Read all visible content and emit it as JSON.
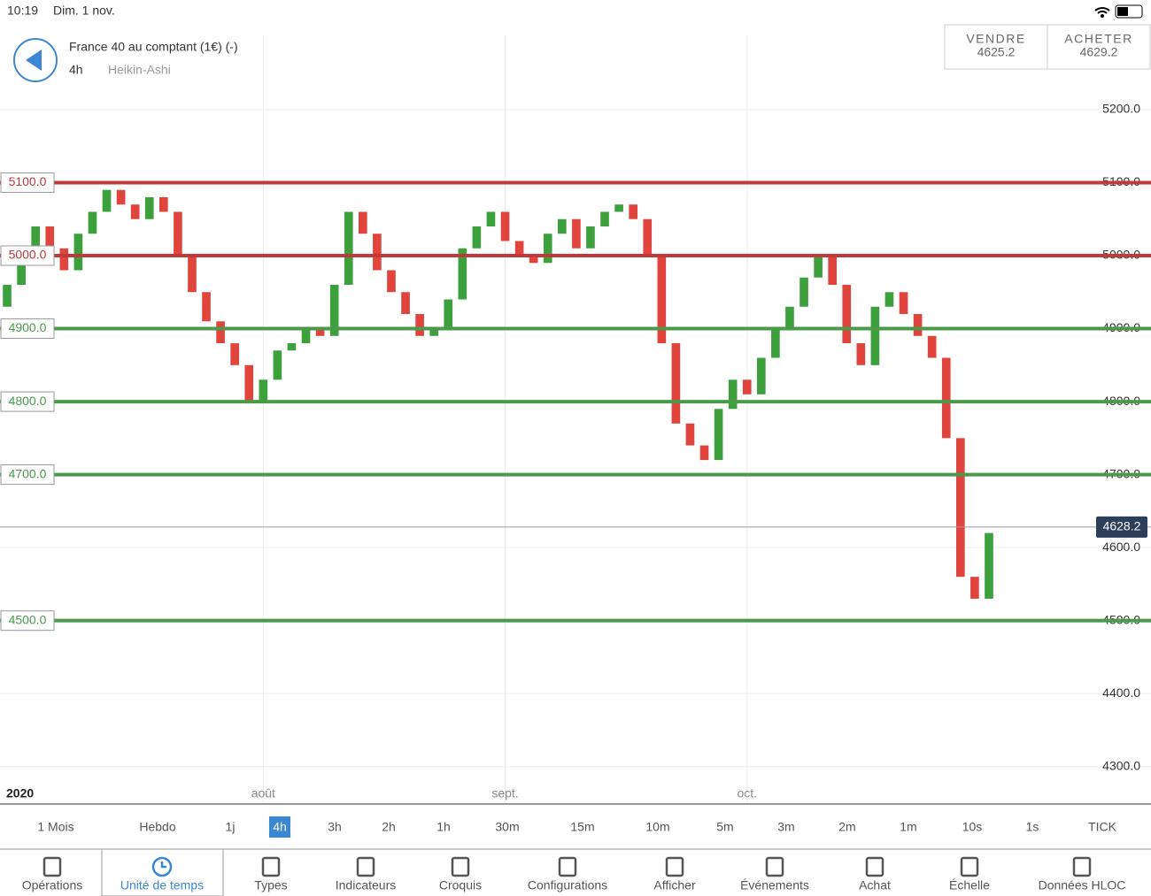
{
  "status": {
    "time": "10:19",
    "date": "Dim. 1 nov."
  },
  "header": {
    "title": "France 40 au comptant (1€) (-)",
    "timeframe": "4h",
    "chart_style": "Heikin-Ashi"
  },
  "quote": {
    "sell_label": "VENDRE",
    "sell": "4625.2",
    "buy_label": "ACHETER",
    "buy": "4629.2"
  },
  "chart_data": {
    "type": "candlestick",
    "categories": [
      null,
      "2020",
      null,
      null,
      null,
      null,
      null,
      null,
      null,
      null,
      null,
      null,
      null,
      null,
      null,
      null,
      null,
      null,
      "août",
      null,
      null,
      null,
      null,
      null,
      null,
      null,
      null,
      null,
      null,
      null,
      null,
      null,
      null,
      null,
      null,
      "sept.",
      null,
      null,
      null,
      null,
      null,
      null,
      null,
      null,
      null,
      null,
      null,
      null,
      null,
      null,
      null,
      null,
      "oct.",
      null,
      null,
      null,
      null,
      null,
      null,
      null,
      null,
      null,
      null,
      null,
      null,
      null,
      null,
      null,
      null,
      null
    ],
    "open": [
      4930,
      4960,
      4990,
      5040,
      5010,
      4980,
      5030,
      5060,
      5090,
      5070,
      5050,
      5080,
      5060,
      5000,
      4950,
      4910,
      4880,
      4850,
      4800,
      4830,
      4870,
      4880,
      4900,
      4890,
      4960,
      5060,
      5030,
      4980,
      4950,
      4920,
      4890,
      4900,
      4940,
      5010,
      5040,
      5060,
      5020,
      5000,
      4990,
      5030,
      5050,
      5010,
      5040,
      5060,
      5070,
      5050,
      5000,
      4880,
      4770,
      4740,
      4720,
      4790,
      4830,
      4810,
      4860,
      4900,
      4930,
      4970,
      5000,
      4960,
      4880,
      4850,
      4930,
      4950,
      4920,
      4890,
      4860,
      4750,
      4560,
      4530
    ],
    "close": [
      4960,
      4990,
      5040,
      5010,
      4980,
      5030,
      5060,
      5090,
      5070,
      5050,
      5080,
      5060,
      5000,
      4950,
      4910,
      4880,
      4850,
      4800,
      4830,
      4870,
      4880,
      4900,
      4890,
      4960,
      5060,
      5030,
      4980,
      4950,
      4920,
      4890,
      4900,
      4940,
      5010,
      5040,
      5060,
      5020,
      5000,
      4990,
      5030,
      5050,
      5010,
      5040,
      5060,
      5070,
      5050,
      5000,
      4880,
      4770,
      4740,
      4720,
      4790,
      4830,
      4810,
      4860,
      4900,
      4930,
      4970,
      5000,
      4960,
      4880,
      4850,
      4930,
      4950,
      4920,
      4890,
      4860,
      4750,
      4560,
      4530,
      4620
    ],
    "up_color": "#3ca03c",
    "down_color": "#e0443c",
    "ylim": [
      4250,
      5300
    ],
    "yticks": [
      {
        "value": 4300,
        "label": "4300.0"
      },
      {
        "value": 4400,
        "label": "4400.0"
      },
      {
        "value": 4500,
        "label": "4500.0"
      },
      {
        "value": 4600,
        "label": "4600.0"
      },
      {
        "value": 4700,
        "label": "4700.0"
      },
      {
        "value": 4800,
        "label": "4800.0"
      },
      {
        "value": 4900,
        "label": "4900.0"
      },
      {
        "value": 5000,
        "label": "5000.0"
      },
      {
        "value": 5100,
        "label": "5100.0"
      },
      {
        "value": 5200,
        "label": "5200.0"
      }
    ],
    "levels": [
      {
        "value": 5100,
        "label": "5100.0",
        "color": "#c0393b"
      },
      {
        "value": 5000,
        "label": "5000.0",
        "color": "#c0393b"
      },
      {
        "value": 4900,
        "label": "4900.0",
        "color": "#4a9a4a"
      },
      {
        "value": 4800,
        "label": "4800.0",
        "color": "#4a9a4a"
      },
      {
        "value": 4700,
        "label": "4700.0",
        "color": "#4a9a4a"
      },
      {
        "value": 4500,
        "label": "4500.0",
        "color": "#4a9a4a"
      }
    ],
    "current_price": {
      "value": 4628.2,
      "label": "4628.2"
    }
  },
  "timeframes": {
    "items": [
      "1 Mois",
      "Hebdo",
      "1j",
      "4h",
      "3h",
      "2h",
      "1h",
      "30m",
      "15m",
      "10m",
      "5m",
      "3m",
      "2m",
      "1m",
      "10s",
      "1s",
      "TICK"
    ],
    "selected": "4h"
  },
  "toolbar": {
    "items": [
      "Opérations",
      "Unité de temps",
      "Types",
      "Indicateurs",
      "Croquis",
      "Configurations",
      "Afficher",
      "Événements",
      "Achat",
      "Échelle",
      "Données HLOC"
    ],
    "selected": "Unité de temps"
  }
}
